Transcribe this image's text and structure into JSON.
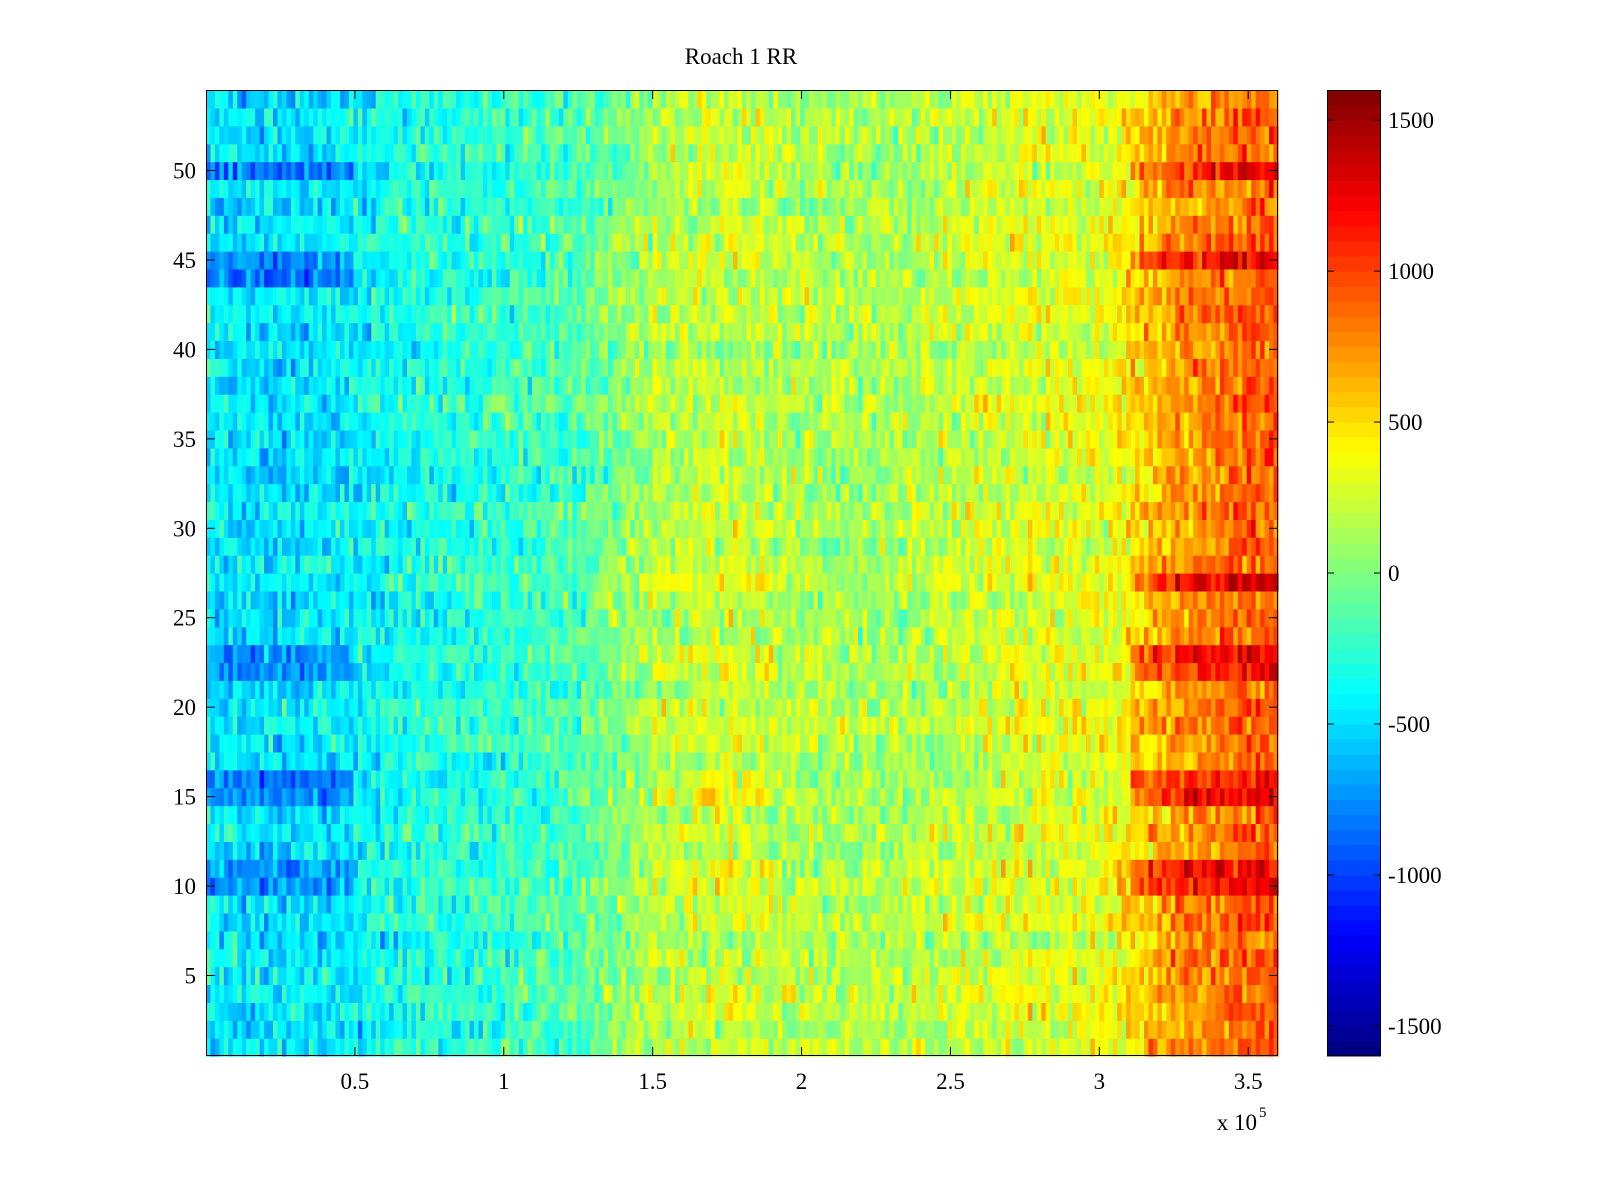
{
  "chart_data": {
    "type": "heatmap",
    "title": "Roach 1 RR",
    "xlabel": "",
    "ylabel": "",
    "x_exponent_label": "x 10",
    "x_exponent_power": "5",
    "xlim": [
      0,
      3.6
    ],
    "ylim": [
      0.5,
      54.5
    ],
    "xticks": [
      0.5,
      1,
      1.5,
      2,
      2.5,
      3,
      3.5
    ],
    "xtick_labels": [
      "0.5",
      "1",
      "1.5",
      "2",
      "2.5",
      "3",
      "3.5"
    ],
    "yticks": [
      5,
      10,
      15,
      20,
      25,
      30,
      35,
      40,
      45,
      50
    ],
    "ytick_labels": [
      "5",
      "10",
      "15",
      "20",
      "25",
      "30",
      "35",
      "40",
      "45",
      "50"
    ],
    "rows": 54,
    "colormap": "jet",
    "clim": [
      -1600,
      1600
    ],
    "colorbar_ticks": [
      1500,
      1000,
      500,
      0,
      -500,
      -1000,
      -1500
    ],
    "colorbar_tick_labels": [
      "1500",
      "1000",
      "500",
      "0",
      "-500",
      "-1000",
      "-1500"
    ],
    "trend": {
      "columns": [
        0.0,
        0.25,
        0.5,
        0.75,
        1.0,
        1.25,
        1.5,
        1.75,
        2.0,
        2.25,
        2.5,
        2.75,
        3.0,
        3.25,
        3.5,
        3.6
      ],
      "mean_values": [
        -450,
        -500,
        -420,
        -300,
        -250,
        -150,
        150,
        230,
        150,
        120,
        200,
        300,
        300,
        700,
        900,
        900
      ]
    },
    "hot_rows": [
      10,
      11,
      15,
      16,
      22,
      23,
      27,
      45,
      50
    ],
    "cool_rows": [
      10,
      11,
      15,
      16,
      22,
      23,
      44,
      45,
      50
    ]
  }
}
